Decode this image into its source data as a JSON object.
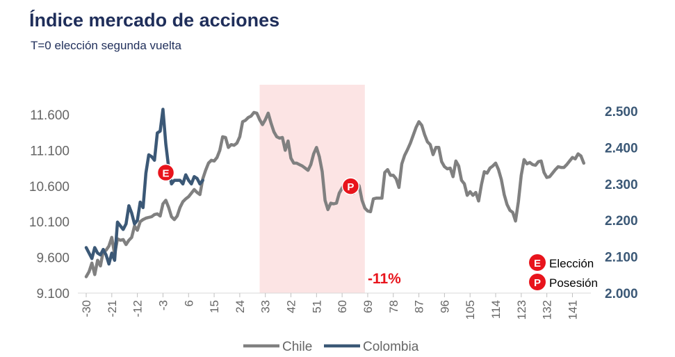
{
  "chart_data": {
    "type": "line",
    "title": "Índice mercado de acciones",
    "subtitle": "T=0 elección segunda vuelta",
    "xlabel": "",
    "ylabel_left": "",
    "ylabel_right": "",
    "x_ticks": [
      "-30",
      "-21",
      "-12",
      "-3",
      "6",
      "15",
      "24",
      "33",
      "42",
      "51",
      "60",
      "69",
      "78",
      "87",
      "96",
      "105",
      "114",
      "123",
      "132",
      "141"
    ],
    "xlim": [
      -30,
      147
    ],
    "y_left": {
      "lim": [
        9100,
        11800
      ],
      "ticks": [
        "9.100",
        "9.600",
        "10.100",
        "10.600",
        "11.100",
        "11.600"
      ],
      "tick_values": [
        9100,
        9600,
        10100,
        10600,
        11100,
        11600
      ]
    },
    "y_right": {
      "lim": [
        2000,
        2520
      ],
      "ticks": [
        "2.000",
        "2.100",
        "2.200",
        "2.300",
        "2.400",
        "2.500"
      ],
      "tick_values": [
        2000,
        2100,
        2200,
        2300,
        2400,
        2500
      ]
    },
    "shaded_region": {
      "x_start": 31,
      "x_end": 68,
      "color": "#fce4e4"
    },
    "series": [
      {
        "name": "Chile",
        "axis": "left",
        "color": "#808080",
        "points": [
          [
            -30,
            9330
          ],
          [
            -29,
            9400
          ],
          [
            -28,
            9520
          ],
          [
            -27,
            9360
          ],
          [
            -26,
            9560
          ],
          [
            -25,
            9480
          ],
          [
            -24,
            9690
          ],
          [
            -23,
            9700
          ],
          [
            -22,
            9760
          ],
          [
            -21,
            9880
          ],
          [
            -20,
            9640
          ],
          [
            -19,
            9860
          ],
          [
            -18,
            9840
          ],
          [
            -17,
            9850
          ],
          [
            -16,
            9780
          ],
          [
            -15,
            9840
          ],
          [
            -14,
            9880
          ],
          [
            -13,
            10040
          ],
          [
            -12,
            9980
          ],
          [
            -11,
            10100
          ],
          [
            -10,
            10130
          ],
          [
            -9,
            10150
          ],
          [
            -8,
            10160
          ],
          [
            -7,
            10170
          ],
          [
            -6,
            10200
          ],
          [
            -5,
            10210
          ],
          [
            -4,
            10180
          ],
          [
            -3,
            10350
          ],
          [
            -2,
            10400
          ],
          [
            -1,
            10300
          ],
          [
            0,
            10170
          ],
          [
            1,
            10130
          ],
          [
            2,
            10180
          ],
          [
            3,
            10300
          ],
          [
            4,
            10380
          ],
          [
            5,
            10420
          ],
          [
            6,
            10450
          ],
          [
            7,
            10500
          ],
          [
            8,
            10550
          ],
          [
            9,
            10510
          ],
          [
            10,
            10480
          ],
          [
            11,
            10700
          ],
          [
            12,
            10820
          ],
          [
            13,
            10920
          ],
          [
            14,
            10960
          ],
          [
            15,
            10950
          ],
          [
            16,
            11000
          ],
          [
            17,
            11100
          ],
          [
            18,
            11290
          ],
          [
            19,
            11280
          ],
          [
            20,
            11140
          ],
          [
            21,
            11180
          ],
          [
            22,
            11170
          ],
          [
            23,
            11200
          ],
          [
            24,
            11290
          ],
          [
            25,
            11500
          ],
          [
            26,
            11520
          ],
          [
            27,
            11560
          ],
          [
            28,
            11580
          ],
          [
            29,
            11630
          ],
          [
            30,
            11620
          ],
          [
            31,
            11530
          ],
          [
            32,
            11460
          ],
          [
            33,
            11530
          ],
          [
            34,
            11620
          ],
          [
            35,
            11480
          ],
          [
            36,
            11360
          ],
          [
            37,
            11290
          ],
          [
            38,
            11270
          ],
          [
            39,
            11280
          ],
          [
            40,
            11100
          ],
          [
            41,
            11230
          ],
          [
            42,
            10990
          ],
          [
            43,
            10920
          ],
          [
            44,
            10920
          ],
          [
            45,
            10900
          ],
          [
            46,
            10880
          ],
          [
            47,
            10850
          ],
          [
            48,
            10820
          ],
          [
            49,
            10900
          ],
          [
            50,
            11050
          ],
          [
            51,
            11140
          ],
          [
            52,
            11010
          ],
          [
            53,
            10800
          ],
          [
            54,
            10400
          ],
          [
            55,
            10270
          ],
          [
            56,
            10360
          ],
          [
            57,
            10350
          ],
          [
            58,
            10360
          ],
          [
            59,
            10500
          ],
          [
            60,
            10570
          ],
          [
            61,
            10640
          ],
          [
            62,
            10580
          ],
          [
            63,
            10520
          ],
          [
            64,
            10500
          ],
          [
            65,
            10650
          ],
          [
            66,
            10600
          ],
          [
            67,
            10400
          ],
          [
            68,
            10290
          ],
          [
            69,
            10250
          ],
          [
            70,
            10240
          ],
          [
            71,
            10420
          ],
          [
            72,
            10430
          ],
          [
            73,
            10430
          ],
          [
            74,
            10430
          ],
          [
            75,
            10790
          ],
          [
            76,
            10830
          ],
          [
            77,
            10750
          ],
          [
            78,
            10750
          ],
          [
            79,
            10700
          ],
          [
            80,
            10580
          ],
          [
            81,
            10910
          ],
          [
            82,
            11030
          ],
          [
            83,
            11110
          ],
          [
            84,
            11200
          ],
          [
            85,
            11310
          ],
          [
            86,
            11420
          ],
          [
            87,
            11500
          ],
          [
            88,
            11450
          ],
          [
            89,
            11320
          ],
          [
            90,
            11220
          ],
          [
            91,
            11180
          ],
          [
            92,
            11040
          ],
          [
            93,
            11140
          ],
          [
            94,
            11140
          ],
          [
            95,
            10940
          ],
          [
            96,
            10870
          ],
          [
            97,
            10840
          ],
          [
            98,
            10850
          ],
          [
            99,
            10730
          ],
          [
            100,
            10950
          ],
          [
            101,
            10880
          ],
          [
            102,
            10680
          ],
          [
            103,
            10630
          ],
          [
            104,
            10470
          ],
          [
            105,
            10520
          ],
          [
            106,
            10470
          ],
          [
            107,
            10510
          ],
          [
            108,
            10390
          ],
          [
            109,
            10620
          ],
          [
            110,
            10800
          ],
          [
            111,
            10780
          ],
          [
            112,
            10850
          ],
          [
            113,
            10880
          ],
          [
            114,
            10920
          ],
          [
            115,
            10830
          ],
          [
            116,
            10690
          ],
          [
            117,
            10480
          ],
          [
            118,
            10340
          ],
          [
            119,
            10260
          ],
          [
            120,
            10230
          ],
          [
            121,
            10110
          ],
          [
            122,
            10380
          ],
          [
            123,
            10750
          ],
          [
            124,
            10970
          ],
          [
            125,
            10910
          ],
          [
            126,
            10930
          ],
          [
            127,
            10900
          ],
          [
            128,
            10890
          ],
          [
            129,
            10940
          ],
          [
            130,
            10950
          ],
          [
            131,
            10790
          ],
          [
            132,
            10720
          ],
          [
            133,
            10730
          ],
          [
            134,
            10780
          ],
          [
            135,
            10830
          ],
          [
            136,
            10870
          ],
          [
            137,
            10860
          ],
          [
            138,
            10860
          ],
          [
            139,
            10900
          ],
          [
            140,
            10950
          ],
          [
            141,
            11000
          ],
          [
            142,
            10980
          ],
          [
            143,
            11050
          ],
          [
            144,
            11020
          ],
          [
            145,
            10920
          ]
        ]
      },
      {
        "name": "Colombia",
        "axis": "right",
        "color": "#3b5876",
        "points": [
          [
            -30,
            2125
          ],
          [
            -29,
            2110
          ],
          [
            -28,
            2095
          ],
          [
            -27,
            2125
          ],
          [
            -26,
            2110
          ],
          [
            -25,
            2105
          ],
          [
            -24,
            2120
          ],
          [
            -23,
            2105
          ],
          [
            -22,
            2080
          ],
          [
            -21,
            2110
          ],
          [
            -20,
            2090
          ],
          [
            -19,
            2195
          ],
          [
            -18,
            2185
          ],
          [
            -17,
            2175
          ],
          [
            -16,
            2190
          ],
          [
            -15,
            2240
          ],
          [
            -14,
            2220
          ],
          [
            -13,
            2190
          ],
          [
            -12,
            2200
          ],
          [
            -11,
            2250
          ],
          [
            -10,
            2235
          ],
          [
            -9,
            2330
          ],
          [
            -8,
            2380
          ],
          [
            -7,
            2375
          ],
          [
            -6,
            2365
          ],
          [
            -5,
            2440
          ],
          [
            -4,
            2445
          ],
          [
            -3,
            2505
          ],
          [
            -2,
            2410
          ],
          [
            -1,
            2345
          ],
          [
            0,
            2300
          ],
          [
            1,
            2310
          ],
          [
            2,
            2310
          ],
          [
            3,
            2310
          ],
          [
            4,
            2300
          ],
          [
            5,
            2325
          ],
          [
            6,
            2310
          ],
          [
            7,
            2300
          ],
          [
            8,
            2320
          ],
          [
            9,
            2315
          ],
          [
            10,
            2300
          ],
          [
            11,
            2310
          ]
        ]
      }
    ],
    "annotations": [
      {
        "text": "-11%",
        "x": 69,
        "y_left": 9380
      }
    ],
    "markers": [
      {
        "letter": "E",
        "series": "Colombia",
        "x": -2,
        "y_right": 2312
      },
      {
        "letter": "P",
        "series": "Chile",
        "x": 63,
        "y_left": 10500
      }
    ],
    "legend": {
      "position": "bottom",
      "items": [
        "Chile",
        "Colombia"
      ]
    },
    "key": [
      {
        "letter": "E",
        "label": "Elección"
      },
      {
        "letter": "P",
        "label": "Posesión"
      }
    ],
    "marker_color": "#e8141c"
  }
}
